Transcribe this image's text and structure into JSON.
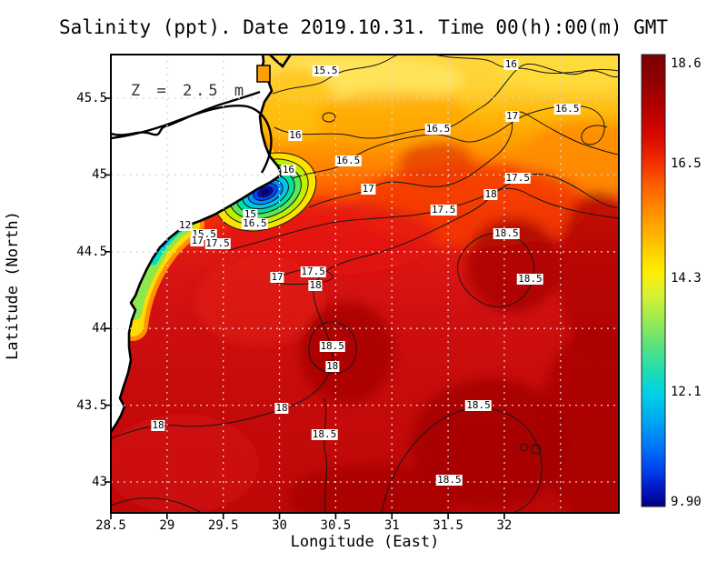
{
  "figure": {
    "title": "Salinity (ppt). Date 2019.10.31. Time 00(h):00(m) GMT",
    "depth_annotation": "Z = 2.5 m",
    "xlabel": "Longitude (East)",
    "ylabel": "Latitude (North)"
  },
  "chart_data": {
    "type": "heatmap",
    "subtype": "filled-contour-map",
    "title": "Salinity (ppt). Date 2019.10.31. Time 00(h):00(m) GMT",
    "variable": "Salinity",
    "units": "ppt",
    "date": "2019.10.31",
    "time": "00(h):00(m) GMT",
    "depth_annotation": "Z = 2.5 m",
    "xlabel": "Longitude (East)",
    "ylabel": "Latitude (North)",
    "xlim": [
      28.5,
      33.0
    ],
    "ylim": [
      42.8,
      45.8
    ],
    "x_ticks": [
      "28.5",
      "29",
      "29.5",
      "30",
      "30.5",
      "31",
      "31.5",
      "32"
    ],
    "x_tick_values": [
      28.5,
      29,
      29.5,
      30,
      30.5,
      31,
      31.5,
      32
    ],
    "y_ticks": [
      "45.5",
      "45",
      "44.5",
      "44",
      "43.5",
      "43"
    ],
    "y_tick_values": [
      45.5,
      45,
      44.5,
      44,
      43.5,
      43
    ],
    "x_gridline_values": [
      29,
      29.5,
      30,
      30.5,
      31,
      31.5,
      32,
      32.5
    ],
    "y_gridline_values": [
      45.5,
      45,
      44.5,
      44,
      43.5,
      43
    ],
    "grid": "dotted",
    "colorbar": {
      "position": "right",
      "min": 9.9,
      "max": 18.6,
      "colormap": "jet",
      "ticks": [
        {
          "label": "18.6",
          "value": 18.6
        },
        {
          "label": "16.5",
          "value": 16.5
        },
        {
          "label": "14.3",
          "value": 14.3
        },
        {
          "label": "12.1",
          "value": 12.1
        },
        {
          "label": "9.90",
          "value": 9.9
        }
      ]
    },
    "contour_levels_labeled": [
      12,
      15,
      15.5,
      16,
      16.5,
      17,
      17.5,
      18,
      18.5
    ],
    "contour_labels": [
      {
        "value": "15.5",
        "lon": 30.41,
        "lat": 45.68
      },
      {
        "value": "16",
        "lon": 32.06,
        "lat": 45.72
      },
      {
        "value": "16.5",
        "lon": 32.56,
        "lat": 45.43
      },
      {
        "value": "17",
        "lon": 32.07,
        "lat": 45.38
      },
      {
        "value": "16.5",
        "lon": 31.41,
        "lat": 45.3
      },
      {
        "value": "16",
        "lon": 30.14,
        "lat": 45.26
      },
      {
        "value": "16.5",
        "lon": 30.61,
        "lat": 45.09
      },
      {
        "value": "16",
        "lon": 30.08,
        "lat": 45.03
      },
      {
        "value": "17.5",
        "lon": 32.12,
        "lat": 44.98
      },
      {
        "value": "17",
        "lon": 30.79,
        "lat": 44.91
      },
      {
        "value": "18",
        "lon": 31.88,
        "lat": 44.87
      },
      {
        "value": "17.5",
        "lon": 31.46,
        "lat": 44.77
      },
      {
        "value": "15",
        "lon": 29.74,
        "lat": 44.74
      },
      {
        "value": "16.5",
        "lon": 29.78,
        "lat": 44.68
      },
      {
        "value": "12",
        "lon": 29.16,
        "lat": 44.67
      },
      {
        "value": "15.5",
        "lon": 29.33,
        "lat": 44.61
      },
      {
        "value": "17",
        "lon": 29.27,
        "lat": 44.57
      },
      {
        "value": "17.5",
        "lon": 29.45,
        "lat": 44.55
      },
      {
        "value": "17.5",
        "lon": 30.3,
        "lat": 44.37
      },
      {
        "value": "17",
        "lon": 29.98,
        "lat": 44.33
      },
      {
        "value": "18",
        "lon": 30.32,
        "lat": 44.28
      },
      {
        "value": "18.5",
        "lon": 32.02,
        "lat": 44.62
      },
      {
        "value": "18.5",
        "lon": 32.23,
        "lat": 44.32
      },
      {
        "value": "18.5",
        "lon": 30.47,
        "lat": 43.88
      },
      {
        "value": "18",
        "lon": 30.47,
        "lat": 43.75
      },
      {
        "value": "18",
        "lon": 30.02,
        "lat": 43.48
      },
      {
        "value": "18.5",
        "lon": 31.77,
        "lat": 43.5
      },
      {
        "value": "18",
        "lon": 28.92,
        "lat": 43.37
      },
      {
        "value": "18.5",
        "lon": 30.4,
        "lat": 43.31
      },
      {
        "value": "18.5",
        "lon": 31.51,
        "lat": 43.01
      }
    ],
    "features": {
      "land_color": "#ffffff",
      "coastline_color": "#000000",
      "river_plume_center": {
        "lon": 29.9,
        "lat": 44.85
      }
    }
  }
}
